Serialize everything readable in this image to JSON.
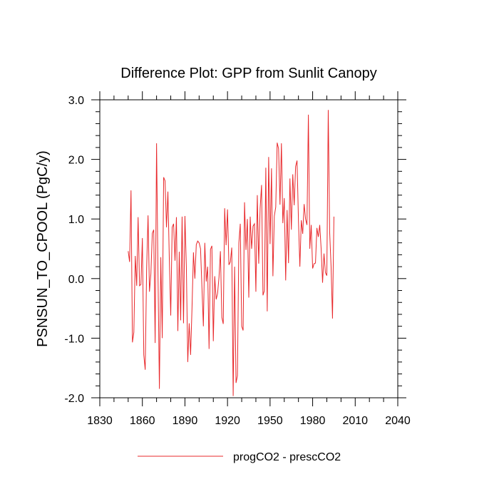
{
  "chart_data": {
    "type": "line",
    "title": "Difference Plot: GPP from Sunlit Canopy",
    "xlabel": "",
    "ylabel": "PSNSUN_TO_CPOOL  (PgC/y)",
    "xlim": [
      1830,
      2040
    ],
    "ylim": [
      -2.0,
      3.0
    ],
    "x_ticks": [
      1830,
      1860,
      1890,
      1920,
      1950,
      1980,
      2010,
      2040
    ],
    "x_tick_labels": [
      "1830",
      "1860",
      "1890",
      "1920",
      "1950",
      "1980",
      "2010",
      "2040"
    ],
    "y_ticks": [
      -2.0,
      -1.0,
      0.0,
      1.0,
      2.0,
      3.0
    ],
    "y_tick_labels": [
      "-2.0",
      "-1.0",
      "0.0",
      "1.0",
      "2.0",
      "3.0"
    ],
    "legend": {
      "position": "bottom-center"
    },
    "series": [
      {
        "name": "progCO2 - prescCO2",
        "color": "#e8282b",
        "x_start": 1850,
        "x_step": 1,
        "values": [
          0.46,
          0.28,
          1.48,
          -1.07,
          -0.9,
          0.38,
          -0.12,
          1.03,
          -0.12,
          -0.1,
          0.68,
          -1.28,
          -1.53,
          0.17,
          1.06,
          -0.22,
          0.08,
          0.76,
          0.82,
          -1.08,
          2.27,
          0.1,
          -1.85,
          0.36,
          -1.0,
          1.7,
          1.64,
          0.86,
          1.46,
          0.32,
          -0.62,
          0.86,
          0.92,
          0.3,
          1.03,
          -0.88,
          0.45,
          -0.7,
          1.04,
          -0.75,
          1.05,
          0.2,
          -1.4,
          -0.75,
          -1.28,
          -0.48,
          0.44,
          0.0,
          0.57,
          0.63,
          0.6,
          0.5,
          -0.16,
          -0.8,
          0.6,
          -0.05,
          0.2,
          -1.18,
          0.49,
          0.55,
          -1.05,
          0.04,
          -0.35,
          -0.25,
          0.02,
          0.46,
          -0.65,
          -0.76,
          1.18,
          0.56,
          1.16,
          0.23,
          0.28,
          0.52,
          -1.97,
          0.2,
          -1.75,
          -1.63,
          0.6,
          0.92,
          -0.8,
          -0.87,
          1.28,
          0.48,
          1.0,
          -0.32,
          1.04,
          0.5,
          0.88,
          0.92,
          -0.22,
          1.4,
          0.25,
          1.18,
          1.57,
          -0.28,
          -0.2,
          1.86,
          -0.55,
          2.04,
          0.58,
          1.85,
          0.04,
          1.05,
          1.2,
          2.28,
          2.18,
          1.24,
          2.27,
          0.93,
          1.35,
          -0.03,
          1.15,
          0.26,
          1.68,
          0.82,
          1.75,
          1.23,
          1.88,
          1.98,
          0.98,
          0.2,
          0.98,
          0.75,
          1.25,
          1.0,
          0.9,
          2.75,
          0.5,
          0.9,
          0.17,
          0.25,
          0.26,
          0.85,
          0.7,
          0.9,
          0.5,
          -0.07,
          0.42,
          0.1,
          0.05,
          2.83,
          0.78,
          0.2,
          -0.67,
          1.04
        ]
      }
    ]
  }
}
